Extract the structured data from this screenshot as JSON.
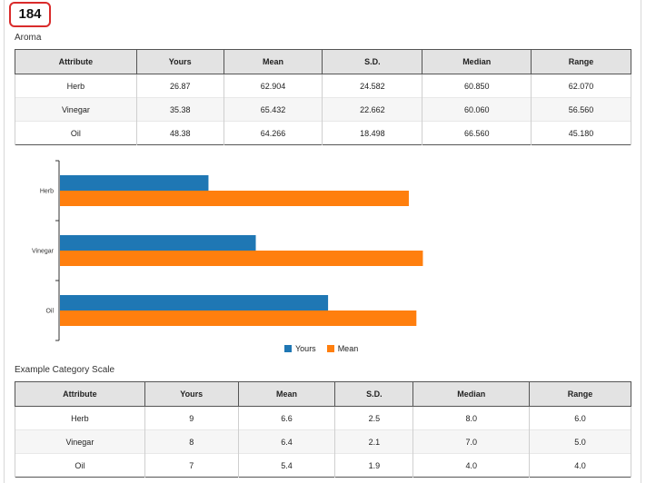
{
  "badge": "184",
  "aroma": {
    "title": "Aroma",
    "headers": [
      "Attribute",
      "Yours",
      "Mean",
      "S.D.",
      "Median",
      "Range"
    ],
    "rows": [
      [
        "Herb",
        "26.87",
        "62.904",
        "24.582",
        "60.850",
        "62.070"
      ],
      [
        "Vinegar",
        "35.38",
        "65.432",
        "22.662",
        "60.060",
        "56.560"
      ],
      [
        "Oil",
        "48.38",
        "64.266",
        "18.498",
        "66.560",
        "45.180"
      ]
    ]
  },
  "chart_data": {
    "type": "bar",
    "orientation": "horizontal",
    "categories": [
      "Herb",
      "Vinegar",
      "Oil"
    ],
    "series": [
      {
        "name": "Yours",
        "values": [
          26.87,
          35.38,
          48.38
        ],
        "color": "#1f77b4"
      },
      {
        "name": "Mean",
        "values": [
          62.904,
          65.432,
          64.266
        ],
        "color": "#ff7f0e"
      }
    ],
    "xlim": [
      0,
      100
    ],
    "legend_position": "bottom-center",
    "grid": false
  },
  "example": {
    "title": "Example Category Scale",
    "headers": [
      "Attribute",
      "Yours",
      "Mean",
      "S.D.",
      "Median",
      "Range"
    ],
    "rows": [
      [
        "Herb",
        "9",
        "6.6",
        "2.5",
        "8.0",
        "6.0"
      ],
      [
        "Vinegar",
        "8",
        "6.4",
        "2.1",
        "7.0",
        "5.0"
      ],
      [
        "Oil",
        "7",
        "5.4",
        "1.9",
        "4.0",
        "4.0"
      ]
    ]
  }
}
